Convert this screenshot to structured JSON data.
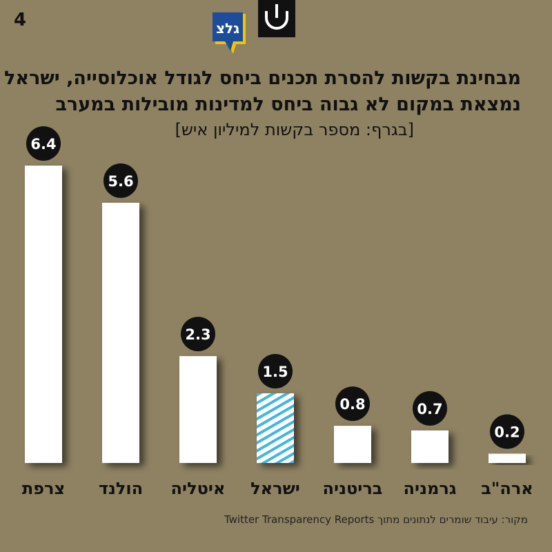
{
  "page_number": "4",
  "title_line1": "מבחינת בקשות להסרת תכנים ביחס לגודל אוכלוסייה, ישראל",
  "title_line2": "נמצאת במקום לא גבוה ביחס למדינות מובילות במערב",
  "subtitle": "[בגרף: מספר בקשות למיליון איש]",
  "source": "מקור: עיבוד שומרים לנתונים מתוך Twitter Transparency Reports",
  "logos": [
    "גלצ",
    "shomrim"
  ],
  "colors": {
    "background": "#8f8263",
    "bar": "#ffffff",
    "highlight_stripe": "#3fb6e0",
    "label_bg": "#111111",
    "text": "#111111"
  },
  "chart_data": {
    "type": "bar",
    "title": "מבחינת בקשות להסרת תכנים ביחס לגודל אוכלוסייה, ישראל נמצאת במקום לא גבוה ביחס למדינות מובילות במערב",
    "subtitle": "[בגרף: מספר בקשות למיליון איש]",
    "categories": [
      "צרפת",
      "הולנד",
      "איטליה",
      "ישראל",
      "בריטניה",
      "גרמניה",
      "ארה\"ב"
    ],
    "values": [
      6.4,
      5.6,
      2.3,
      1.5,
      0.8,
      0.7,
      0.2
    ],
    "value_labels": [
      "6.4",
      "5.6",
      "2.3",
      "1.5",
      "0.8",
      "0.7",
      "0.2"
    ],
    "highlighted": "ישראל",
    "ylim": [
      0,
      6.4
    ],
    "grid": false,
    "legend": "none"
  }
}
